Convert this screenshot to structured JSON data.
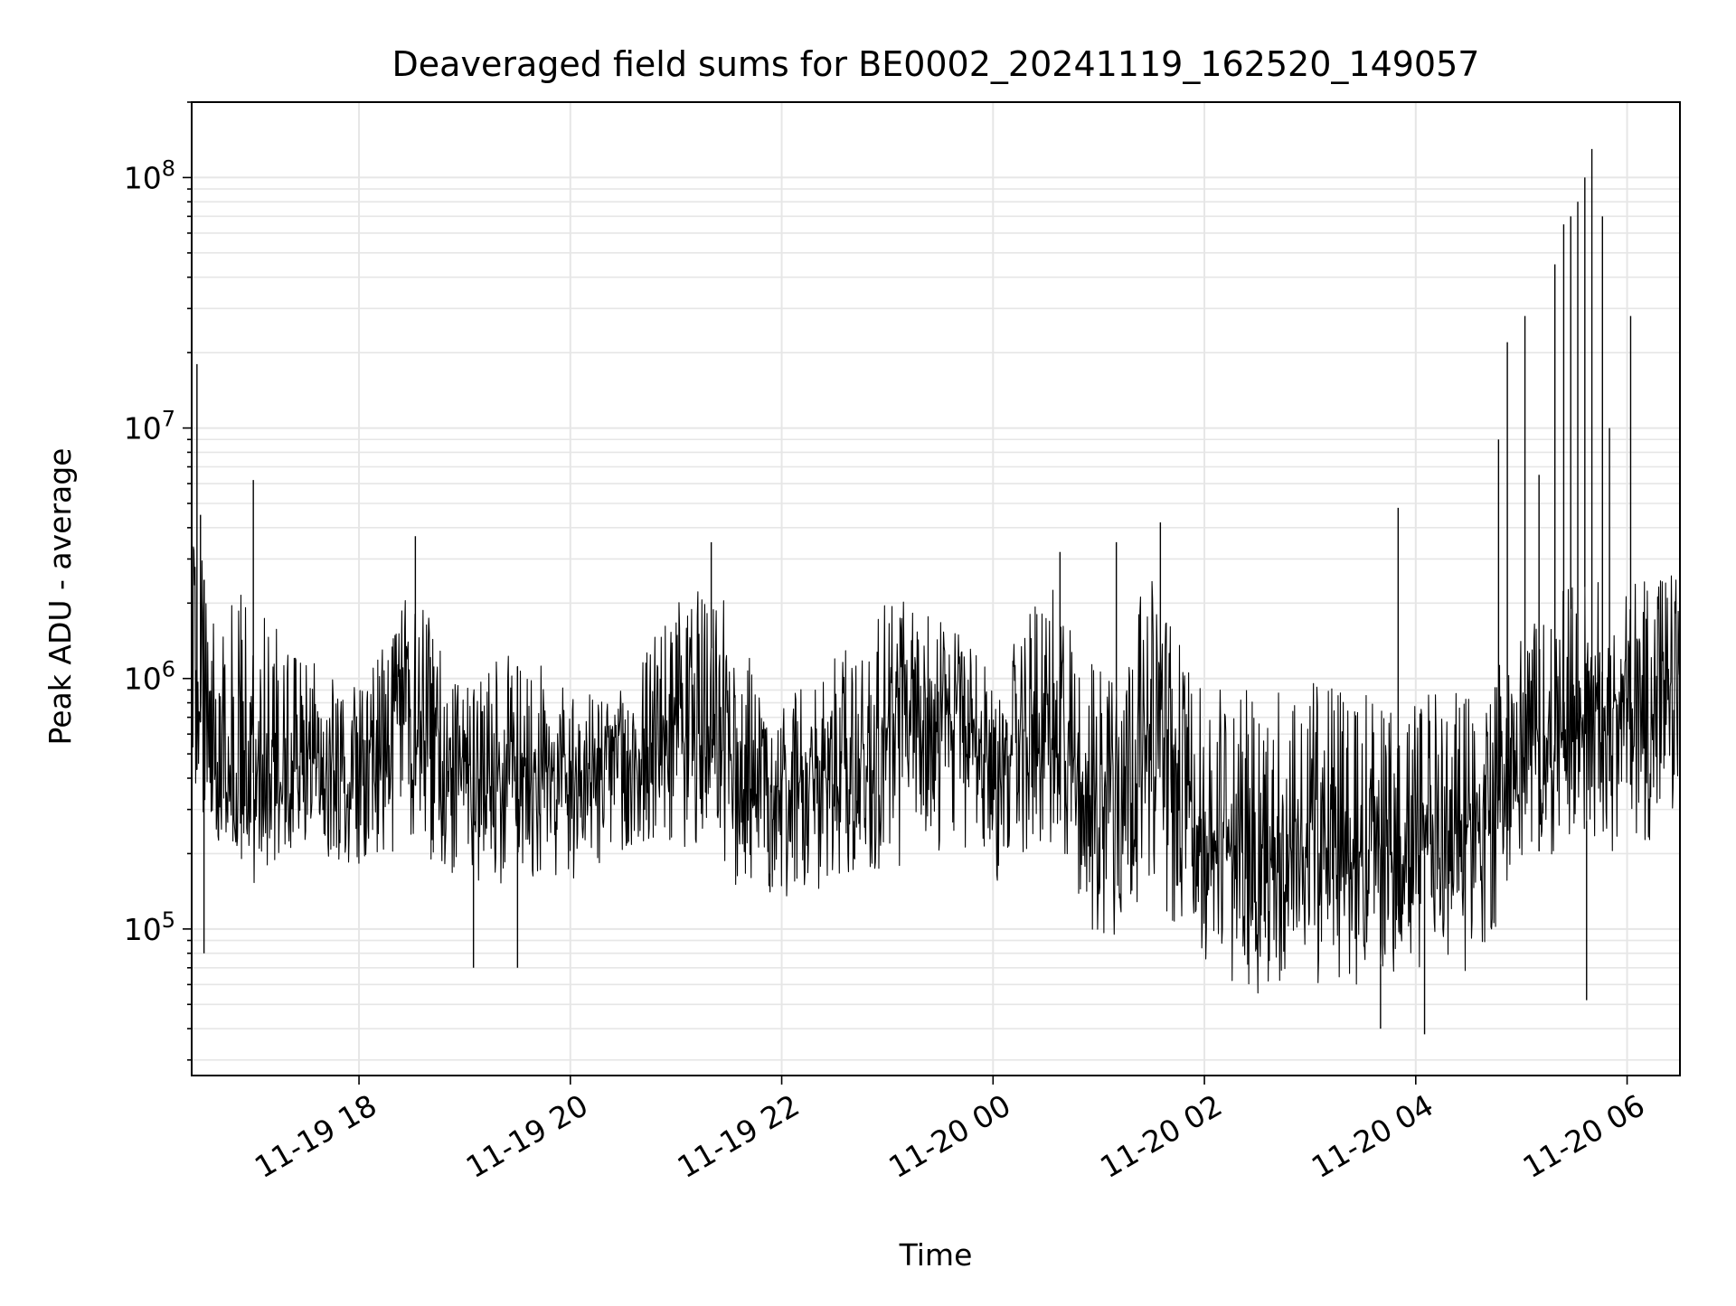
{
  "chart_data": {
    "type": "line",
    "title": "Deaveraged field sums for BE0002_20241119_162520_149057",
    "xlabel": "Time",
    "ylabel": "Peak ADU - average",
    "yscale": "log",
    "xlim": [
      "2024-11-19 16:25",
      "2024-11-20 06:30"
    ],
    "ylim": [
      26000,
      200000000
    ],
    "x_ticks": [
      {
        "value": "2024-11-19 18:00",
        "label": "11-19 18"
      },
      {
        "value": "2024-11-19 20:00",
        "label": "11-19 20"
      },
      {
        "value": "2024-11-19 22:00",
        "label": "11-19 22"
      },
      {
        "value": "2024-11-20 00:00",
        "label": "11-20 00"
      },
      {
        "value": "2024-11-20 02:00",
        "label": "11-20 02"
      },
      {
        "value": "2024-11-20 04:00",
        "label": "11-20 04"
      },
      {
        "value": "2024-11-20 06:00",
        "label": "11-20 06"
      }
    ],
    "y_ticks": [
      {
        "value": 100000,
        "label": "10",
        "exp": "5"
      },
      {
        "value": 1000000,
        "label": "10",
        "exp": "6"
      },
      {
        "value": 10000000,
        "label": "10",
        "exp": "7"
      },
      {
        "value": 100000000,
        "label": "10",
        "exp": "8"
      }
    ],
    "grid": true,
    "line_color": "#000000",
    "grid_color": "#e6e6e6",
    "series": [
      {
        "values_envelope": [
          {
            "time": "2024-11-19 16:25",
            "low": 400000,
            "mid": 900000,
            "high": 3500000
          },
          {
            "time": "2024-11-19 16:40",
            "low": 180000,
            "mid": 450000,
            "high": 2500000
          },
          {
            "time": "2024-11-19 17:00",
            "low": 150000,
            "mid": 400000,
            "high": 2000000
          },
          {
            "time": "2024-11-19 17:30",
            "low": 200000,
            "mid": 450000,
            "high": 1200000
          },
          {
            "time": "2024-11-19 18:00",
            "low": 150000,
            "mid": 500000,
            "high": 900000
          },
          {
            "time": "2024-11-19 18:30",
            "low": 200000,
            "mid": 700000,
            "high": 2500000
          },
          {
            "time": "2024-11-19 19:00",
            "low": 150000,
            "mid": 450000,
            "high": 900000
          },
          {
            "time": "2024-11-19 19:30",
            "low": 150000,
            "mid": 450000,
            "high": 1500000
          },
          {
            "time": "2024-11-19 20:00",
            "low": 150000,
            "mid": 400000,
            "high": 900000
          },
          {
            "time": "2024-11-19 20:30",
            "low": 150000,
            "mid": 450000,
            "high": 900000
          },
          {
            "time": "2024-11-19 21:00",
            "low": 200000,
            "mid": 600000,
            "high": 2500000
          },
          {
            "time": "2024-11-19 21:30",
            "low": 150000,
            "mid": 500000,
            "high": 2000000
          },
          {
            "time": "2024-11-19 22:00",
            "low": 120000,
            "mid": 350000,
            "high": 800000
          },
          {
            "time": "2024-11-19 22:30",
            "low": 130000,
            "mid": 400000,
            "high": 1200000
          },
          {
            "time": "2024-11-19 23:00",
            "low": 150000,
            "mid": 600000,
            "high": 2200000
          },
          {
            "time": "2024-11-19 23:30",
            "low": 200000,
            "mid": 800000,
            "high": 2000000
          },
          {
            "time": "2024-11-20 00:00",
            "low": 150000,
            "mid": 450000,
            "high": 1000000
          },
          {
            "time": "2024-11-20 00:30",
            "low": 200000,
            "mid": 600000,
            "high": 2500000
          },
          {
            "time": "2024-11-20 01:00",
            "low": 70000,
            "mid": 300000,
            "high": 1200000
          },
          {
            "time": "2024-11-20 01:30",
            "low": 150000,
            "mid": 700000,
            "high": 2500000
          },
          {
            "time": "2024-11-20 02:00",
            "low": 60000,
            "mid": 250000,
            "high": 900000
          },
          {
            "time": "2024-11-20 02:30",
            "low": 55000,
            "mid": 200000,
            "high": 900000
          },
          {
            "time": "2024-11-20 03:00",
            "low": 55000,
            "mid": 200000,
            "high": 1000000
          },
          {
            "time": "2024-11-20 03:30",
            "low": 55000,
            "mid": 200000,
            "high": 1000000
          },
          {
            "time": "2024-11-20 04:00",
            "low": 55000,
            "mid": 200000,
            "high": 900000
          },
          {
            "time": "2024-11-20 04:30",
            "low": 60000,
            "mid": 250000,
            "high": 1000000
          },
          {
            "time": "2024-11-20 05:00",
            "low": 150000,
            "mid": 500000,
            "high": 1500000
          },
          {
            "time": "2024-11-20 05:30",
            "low": 200000,
            "mid": 700000,
            "high": 2500000
          },
          {
            "time": "2024-11-20 06:00",
            "low": 200000,
            "mid": 800000,
            "high": 2500000
          },
          {
            "time": "2024-11-20 06:30",
            "low": 250000,
            "mid": 900000,
            "high": 3000000
          }
        ],
        "spikes": [
          {
            "time": "2024-11-19 16:28",
            "value": 18000000
          },
          {
            "time": "2024-11-19 16:30",
            "value": 4500000
          },
          {
            "time": "2024-11-19 17:00",
            "value": 6200000
          },
          {
            "time": "2024-11-19 18:32",
            "value": 3700000
          },
          {
            "time": "2024-11-19 21:20",
            "value": 3500000
          },
          {
            "time": "2024-11-20 00:38",
            "value": 3200000
          },
          {
            "time": "2024-11-20 01:10",
            "value": 3500000
          },
          {
            "time": "2024-11-20 01:35",
            "value": 4200000
          },
          {
            "time": "2024-11-20 03:50",
            "value": 4800000
          },
          {
            "time": "2024-11-20 04:47",
            "value": 9000000
          },
          {
            "time": "2024-11-20 04:52",
            "value": 22000000
          },
          {
            "time": "2024-11-20 05:02",
            "value": 28000000
          },
          {
            "time": "2024-11-20 05:10",
            "value": 6500000
          },
          {
            "time": "2024-11-20 05:19",
            "value": 45000000
          },
          {
            "time": "2024-11-20 05:24",
            "value": 65000000
          },
          {
            "time": "2024-11-20 05:28",
            "value": 70000000
          },
          {
            "time": "2024-11-20 05:32",
            "value": 80000000
          },
          {
            "time": "2024-11-20 05:36",
            "value": 100000000
          },
          {
            "time": "2024-11-20 05:40",
            "value": 130000000
          },
          {
            "time": "2024-11-20 05:46",
            "value": 70000000
          },
          {
            "time": "2024-11-20 05:50",
            "value": 10000000
          },
          {
            "time": "2024-11-20 06:02",
            "value": 28000000
          }
        ],
        "dips": [
          {
            "time": "2024-11-19 16:32",
            "value": 80000
          },
          {
            "time": "2024-11-19 19:05",
            "value": 70000
          },
          {
            "time": "2024-11-19 19:30",
            "value": 70000
          },
          {
            "time": "2024-11-20 03:40",
            "value": 40000
          },
          {
            "time": "2024-11-20 04:05",
            "value": 38000
          },
          {
            "time": "2024-11-20 05:37",
            "value": 52000
          }
        ]
      }
    ]
  }
}
